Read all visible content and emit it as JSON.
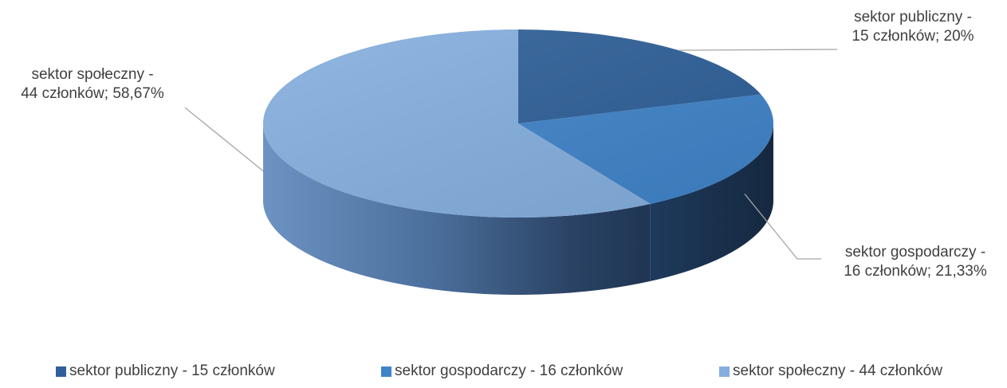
{
  "chart_data": {
    "type": "pie",
    "title": "",
    "style": "3d",
    "categories": [
      "sektor publiczny - 15 członków",
      "sektor gospodarczy - 16 członków",
      "sektor społeczny  - 44 członków"
    ],
    "values": [
      15,
      16,
      44
    ],
    "percentages": [
      20,
      21.33,
      58.67
    ],
    "colors": [
      "#2e5f98",
      "#3f83c9",
      "#84aede"
    ],
    "data_labels": [
      {
        "line1": "sektor publiczny -",
        "line2": "15 członków; 20%"
      },
      {
        "line1": "sektor gospodarczy -",
        "line2": "16 członków; 21,33%"
      },
      {
        "line1": "sektor społeczny  -",
        "line2": "44 członków; 58,67%"
      }
    ],
    "legend": {
      "position": "bottom",
      "entries": [
        "sektor publiczny - 15 członków",
        "sektor gospodarczy - 16 członków",
        "sektor społeczny  - 44 członków"
      ]
    }
  }
}
